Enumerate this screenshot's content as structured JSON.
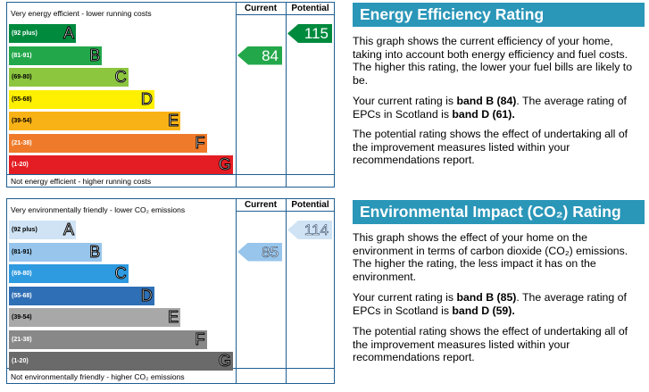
{
  "energy": {
    "header_current": "Current",
    "header_potential": "Potential",
    "top_caption": "Very energy efficient - lower running costs",
    "bottom_caption": "Not energy efficient - higher running costs",
    "bands": [
      {
        "range": "(92 plus)",
        "letter": "A",
        "color": "#008a3e",
        "range_color": "#ffffff"
      },
      {
        "range": "(81-91)",
        "letter": "B",
        "color": "#22a84a",
        "range_color": "#ffffff"
      },
      {
        "range": "(69-80)",
        "letter": "C",
        "color": "#8cc63f",
        "range_color": "#000000"
      },
      {
        "range": "(55-68)",
        "letter": "D",
        "color": "#ffef00",
        "range_color": "#000000"
      },
      {
        "range": "(39-54)",
        "letter": "E",
        "color": "#f9b216",
        "range_color": "#000000"
      },
      {
        "range": "(21-38)",
        "letter": "F",
        "color": "#ef7b2a",
        "range_color": "#ffffff"
      },
      {
        "range": "(1-20)",
        "letter": "G",
        "color": "#e31d23",
        "range_color": "#ffffff"
      }
    ],
    "current": {
      "value": "84",
      "band": "B",
      "color": "#22a84a"
    },
    "potential": {
      "value": "115",
      "band": "A",
      "color": "#008a3e"
    }
  },
  "environment": {
    "header_current": "Current",
    "header_potential": "Potential",
    "top_caption": "Very environmentally friendly - lower CO₂ emissions",
    "bottom_caption": "Not environmentally friendly - higher CO₂ emissions",
    "bands": [
      {
        "range": "(92 plus)",
        "letter": "A",
        "color": "#cfe3f5",
        "range_color": "#000000"
      },
      {
        "range": "(81-91)",
        "letter": "B",
        "color": "#97c5ec",
        "range_color": "#000000"
      },
      {
        "range": "(69-80)",
        "letter": "C",
        "color": "#2e9ae0",
        "range_color": "#ffffff"
      },
      {
        "range": "(55-68)",
        "letter": "D",
        "color": "#2f6fb5",
        "range_color": "#ffffff"
      },
      {
        "range": "(39-54)",
        "letter": "E",
        "color": "#a8a8a8",
        "range_color": "#000000"
      },
      {
        "range": "(21-38)",
        "letter": "F",
        "color": "#888888",
        "range_color": "#ffffff"
      },
      {
        "range": "(1-20)",
        "letter": "G",
        "color": "#6a6a6a",
        "range_color": "#ffffff"
      }
    ],
    "current": {
      "value": "85",
      "band": "B",
      "color": "#97c5ec"
    },
    "potential": {
      "value": "114",
      "band": "A",
      "color": "#cfe3f5"
    }
  },
  "energy_panel": {
    "title": "Energy Efficiency Rating",
    "para1": "This graph shows the current efficiency of your home, taking into account both energy efficiency and fuel costs. The higher this rating, the lower your fuel bills are likely to be.",
    "para2_pre": "Your current rating is ",
    "para2_bold1": "band B (84)",
    "para2_mid": ". The average rating of EPCs in Scotland is ",
    "para2_bold2": "band D (61).",
    "para3": "The potential rating shows the effect of undertaking all of the improvement measures listed within your recommendations report."
  },
  "env_panel": {
    "title": "Environmental Impact (CO₂) Rating",
    "para1": "This graph shows the effect of your home on the environment in terms of carbon dioxide (CO₂) emissions. The higher the rating, the less impact it has on the environment.",
    "para2_pre": "Your current rating is ",
    "para2_bold1": "band B (85)",
    "para2_mid": ". The average rating of EPCs in Scotland is ",
    "para2_bold2": "band D (59).",
    "para3": "The potential rating shows the effect of undertaking all of the improvement measures listed within your recommendations report."
  }
}
